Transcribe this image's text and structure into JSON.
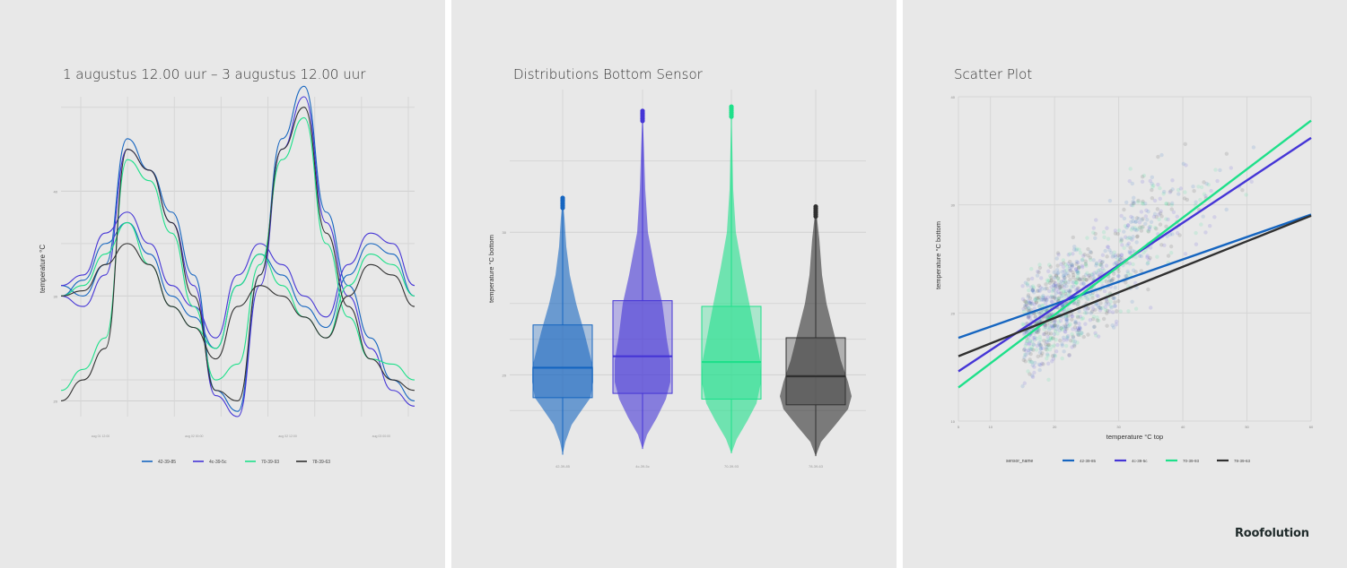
{
  "colors": {
    "s1": "#1565c0",
    "s2": "#4535d6",
    "s3": "#1ee08a",
    "s4": "#303030"
  },
  "brand": "Roofolution",
  "chart_data": [
    {
      "type": "line",
      "title": "1 augustus 12.00 uur – 3 augustus 12.00 uur",
      "ylabel": "temperature °C",
      "xlabel": "",
      "y_ticks": [
        20,
        30,
        40
      ],
      "x_ticks": [
        "aug 01 12:00",
        "aug 01 18:00",
        "aug 02 00:00",
        "aug 02 06:00",
        "aug 02 12:00",
        "aug 02 18:00",
        "aug 03 00:00",
        "aug 03 06:00"
      ],
      "ylim": [
        18.5,
        49
      ],
      "grid": true,
      "legend_position": "bottom",
      "x": [
        0,
        3,
        6,
        9,
        12,
        15,
        18,
        21,
        24,
        27,
        30,
        33,
        36,
        39,
        42,
        45,
        48
      ],
      "series": [
        {
          "name": "42-39-85",
          "values": [
            31,
            30,
            33,
            45,
            42,
            38,
            32,
            21,
            19,
            32,
            45,
            50,
            38,
            31,
            26,
            22,
            20
          ],
          "smooth": [
            30,
            31.5,
            35,
            37,
            34,
            30,
            28,
            25,
            31,
            34,
            32,
            29,
            27,
            32,
            35,
            34,
            30
          ]
        },
        {
          "name": "4c-39-5c",
          "values": [
            30,
            29,
            32,
            44,
            42,
            37,
            31,
            20.5,
            18.5,
            31,
            44,
            49,
            37,
            30,
            25,
            21,
            19.5
          ],
          "smooth": [
            31,
            32,
            36,
            38,
            35,
            31,
            29,
            26,
            32,
            35,
            33,
            30,
            28,
            33,
            36,
            35,
            31
          ]
        },
        {
          "name": "70-39-93",
          "values": [
            21,
            23,
            26,
            43,
            41,
            36,
            29,
            22,
            23.5,
            33,
            43,
            47,
            35,
            28,
            24,
            23.5,
            22
          ],
          "smooth": [
            30,
            31,
            34,
            37,
            33,
            29,
            27,
            25,
            31,
            34,
            31,
            28,
            26,
            31,
            34,
            33,
            30
          ]
        },
        {
          "name": "78-39-63",
          "values": [
            20,
            22,
            25,
            44,
            42,
            37,
            30,
            21,
            20,
            32,
            44,
            48,
            36,
            29,
            24,
            22,
            21
          ],
          "smooth": [
            30,
            30.5,
            33,
            35,
            33,
            29,
            27,
            24,
            29,
            31,
            30,
            28,
            26,
            30,
            33,
            32,
            29
          ]
        }
      ]
    },
    {
      "type": "violin",
      "title": "Distributions Bottom Sensor",
      "ylabel": "temperature °C bottom",
      "xlabel": "",
      "y_ticks": [
        20,
        30
      ],
      "ylim": [
        15,
        40
      ],
      "grid": true,
      "categories": [
        "42-39-85",
        "4c-39-5c",
        "70-39-93",
        "78-39-63"
      ],
      "boxes": [
        {
          "min": 14.4,
          "q1": 18.4,
          "median": 20.5,
          "q3": 23.5,
          "max": 32.4
        },
        {
          "min": 14.8,
          "q1": 18.7,
          "median": 21.3,
          "q3": 25.2,
          "max": 38.5
        },
        {
          "min": 14.5,
          "q1": 18.3,
          "median": 20.9,
          "q3": 24.8,
          "max": 38.8
        },
        {
          "min": 14.3,
          "q1": 17.9,
          "median": 19.9,
          "q3": 22.6,
          "max": 31.8
        }
      ]
    },
    {
      "type": "scatter",
      "title": "Scatter Plot",
      "xlabel": "temperature °C top",
      "ylabel": "temperature °C bottom",
      "x_ticks": [
        5,
        10,
        20,
        30,
        40,
        50,
        60
      ],
      "y_ticks": [
        10,
        20,
        30,
        40
      ],
      "xlim": [
        5,
        60
      ],
      "ylim": [
        10,
        40
      ],
      "legend_title": "sensor_name",
      "legend_position": "bottom",
      "regression_lines": [
        {
          "name": "42-39-85",
          "x": [
            5,
            60
          ],
          "y": [
            17.7,
            29.1
          ]
        },
        {
          "name": "4c-39-5c",
          "x": [
            5,
            60
          ],
          "y": [
            14.6,
            36.2
          ]
        },
        {
          "name": "70-39-93",
          "x": [
            5,
            60
          ],
          "y": [
            13.1,
            37.8
          ]
        },
        {
          "name": "78-39-63",
          "x": [
            5,
            60
          ],
          "y": [
            16.0,
            29.0
          ]
        }
      ],
      "point_cloud": {
        "x_range": [
          5,
          55
        ],
        "y_range": [
          13,
          36
        ],
        "note_center": [
          15,
          19
        ]
      }
    }
  ]
}
